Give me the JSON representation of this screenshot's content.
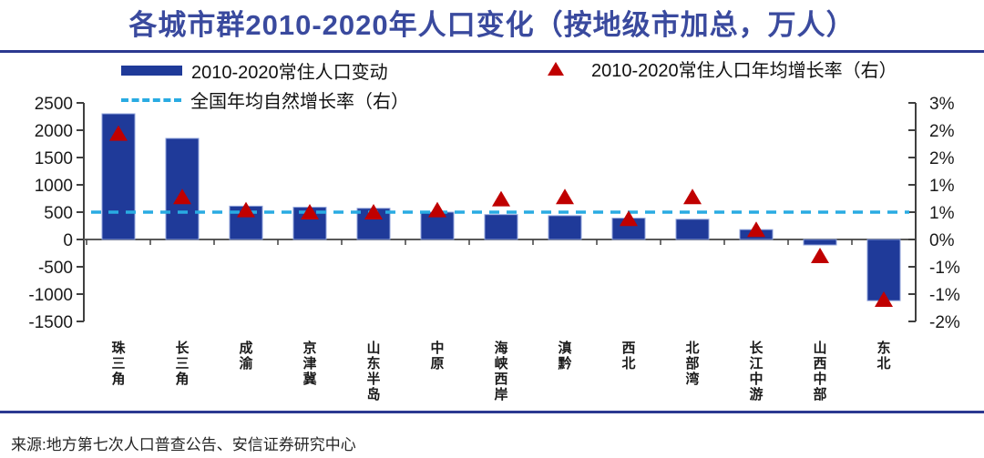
{
  "title": "各城市群2010-2020年人口变化（按地级市加总，万人）",
  "source": "来源:地方第七次人口普查公告、安信证券研究中心",
  "colors": {
    "title": "#3A4A9E",
    "rule": "#2B3990",
    "bar": "#1F3A99",
    "bar_edge": "#8FA3DB",
    "marker": "#C00000",
    "dashed_line": "#29ABE2",
    "axis": "#404040",
    "baseline": "#595959",
    "text": "#1A1A1A"
  },
  "legend": {
    "population_change": "2010-2020常住人口变动",
    "growth_rate": "2010-2020常住人口年均增长率（右）",
    "natural_growth": "全国年均自然增长率（右）"
  },
  "chart_data": {
    "type": "bar",
    "title": "各城市群2010-2020年人口变化（按地级市加总，万人）",
    "categories": [
      "珠三角",
      "长三角",
      "成渝",
      "京津冀",
      "山东半岛",
      "中原",
      "海峡西岸",
      "滇黔",
      "西北",
      "北部湾",
      "长江中游",
      "山西中部",
      "东北"
    ],
    "series": [
      {
        "name": "2010-2020常住人口变动",
        "type": "bar",
        "axis": "left",
        "unit": "万人",
        "values": [
          2300,
          1850,
          610,
          590,
          570,
          500,
          455,
          435,
          390,
          370,
          180,
          -100,
          -1120
        ]
      },
      {
        "name": "2010-2020常住人口年均增长率（右）",
        "type": "scatter",
        "marker": "triangle",
        "axis": "right",
        "unit": "%",
        "values": [
          2.3,
          0.85,
          0.55,
          0.5,
          0.5,
          0.55,
          0.8,
          0.85,
          0.35,
          0.85,
          0.1,
          -0.5,
          -1.5
        ]
      }
    ],
    "reference_line": {
      "name": "全国年均自然增长率（右）",
      "axis": "right",
      "value": 0.5,
      "style": "dashed"
    },
    "left_axis": {
      "min": -1500,
      "max": 2500,
      "step": 500,
      "tick_labels": [
        "2500",
        "2000",
        "1500",
        "1000",
        "500",
        "0",
        "-500",
        "-1000",
        "-1500"
      ]
    },
    "right_axis": {
      "min": -2,
      "max": 3,
      "tick_labels": [
        "3%",
        "2%",
        "2%",
        "1%",
        "1%",
        "0%",
        "-1%",
        "-1%",
        "-2%"
      ]
    },
    "grid": false,
    "legend_position": "top"
  }
}
